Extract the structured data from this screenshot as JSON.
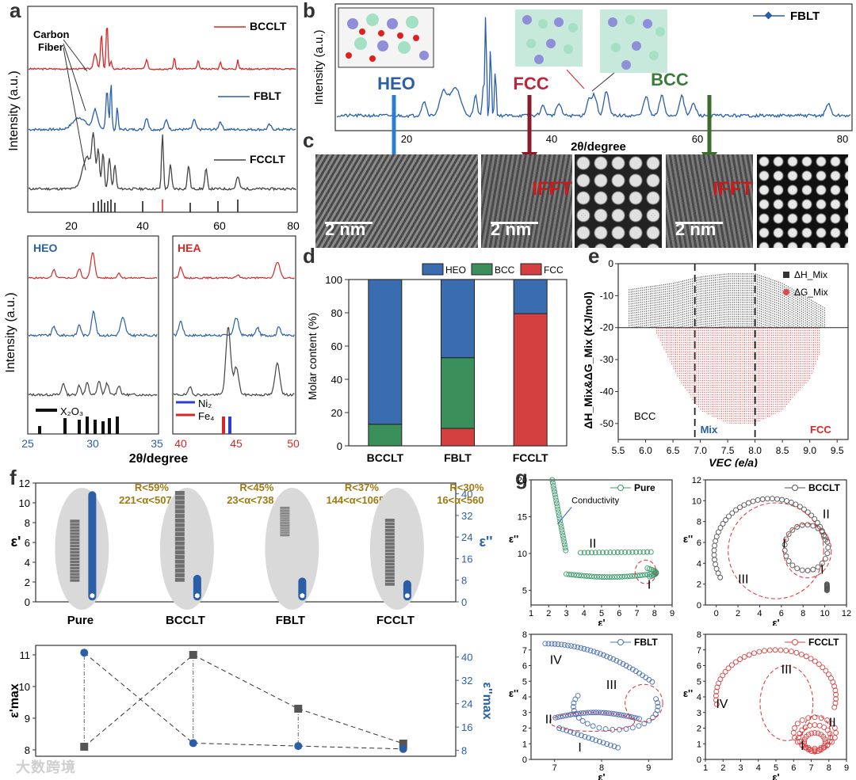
{
  "panel_labels": {
    "a": "a",
    "b": "b",
    "c": "c",
    "d": "d",
    "e": "e",
    "f": "f",
    "g": "g"
  },
  "colors": {
    "red": "#d62728",
    "blue": "#2a5fa8",
    "black": "#333333",
    "green": "#3a7d3a",
    "fcc_bar": "#d44040",
    "bcc_bar": "#3b8f5a",
    "heo_bar": "#3a6cb0"
  },
  "panel_a": {
    "ylabel": "Intensity (a.u.)",
    "series": [
      "BCCLT",
      "FBLT",
      "FCCLT"
    ],
    "annotation": "Carbon\nFiber",
    "annotation_l1": "Carbon",
    "annotation_l2": "Fiber",
    "xticks": [
      "20",
      "40",
      "60",
      "80"
    ],
    "xlim": [
      10,
      80
    ]
  },
  "panel_a2": {
    "ylabel": "Intensity (a.u.)",
    "left_title": "HEO",
    "right_title": "HEA",
    "left_xticks": [
      "25",
      "30",
      "35"
    ],
    "right_xticks": [
      "40",
      "45",
      "50"
    ],
    "xlabel": "2θ/degree",
    "legend_left": "X₂O₃",
    "legend_right_1": "Ni₂",
    "legend_right_2": "Fe₄"
  },
  "panel_b": {
    "ylabel": "Intensity (a.u.)",
    "xlabel": "2θ/degree",
    "legend": "FBLT",
    "labels": [
      "HEO",
      "FCC",
      "BCC"
    ],
    "xticks": [
      "20",
      "40",
      "60",
      "80"
    ]
  },
  "panel_c": {
    "scale_labels": [
      "2 nm",
      "2 nm",
      "2 nm"
    ],
    "ifft_label": "IFFT"
  },
  "chart_data": [
    {
      "type": "bar",
      "id": "d",
      "stacked": true,
      "categories": [
        "BCCLT",
        "FBLT",
        "FCCLT"
      ],
      "series": [
        {
          "name": "FCC",
          "values": [
            0,
            10.5,
            79.5
          ]
        },
        {
          "name": "BCC",
          "values": [
            13,
            42.5,
            0
          ]
        },
        {
          "name": "HEO",
          "values": [
            87,
            47,
            20.5
          ]
        }
      ],
      "ylabel": "Molar content (%)",
      "ylim": [
        0,
        100
      ],
      "yticks": [
        0,
        20,
        40,
        60,
        80,
        100
      ],
      "legend_position": "top-right"
    },
    {
      "type": "scatter",
      "id": "e",
      "xlabel": "VEC (e/a)",
      "ylabel": "ΔH_Mix&ΔG_Mix (KJ/mol)",
      "xlim": [
        5.5,
        9.7
      ],
      "ylim": [
        -55,
        0
      ],
      "xticks": [
        5.5,
        6.0,
        6.5,
        7.0,
        7.5,
        8.0,
        8.5,
        9.0,
        9.5
      ],
      "yticks": [
        -50,
        -40,
        -30,
        -20,
        -10,
        0
      ],
      "series": [
        {
          "name": "ΔH_Mix",
          "envelope_top": [
            [
              5.7,
              -8
            ],
            [
              6.5,
              -6
            ],
            [
              7.0,
              -4
            ],
            [
              7.5,
              -3
            ],
            [
              8.0,
              -3
            ],
            [
              8.5,
              -6
            ],
            [
              9.0,
              -11
            ],
            [
              9.3,
              -14
            ]
          ],
          "envelope_bottom": -20
        },
        {
          "name": "ΔG_Mix",
          "envelope_bottom": [
            [
              6.2,
              -22
            ],
            [
              6.6,
              -36
            ],
            [
              7.0,
              -46
            ],
            [
              7.5,
              -50
            ],
            [
              8.0,
              -50
            ],
            [
              8.5,
              -46
            ],
            [
              9.0,
              -36
            ],
            [
              9.2,
              -28
            ]
          ],
          "envelope_top": -20
        }
      ],
      "reference_lines": {
        "vertical": [
          6.9,
          8.0
        ],
        "horizontal": -20
      },
      "region_labels": [
        "BCC",
        "Mix",
        "FCC"
      ]
    },
    {
      "type": "box",
      "id": "f_top",
      "categories": [
        "Pure",
        "BCCLT",
        "FBLT",
        "FCCLT"
      ],
      "ylabel_left": "ε'",
      "ylabel_right": "ε''",
      "ylim_left": [
        0,
        12
      ],
      "ylim_right": [
        0,
        44
      ],
      "yticks_left": [
        0,
        2,
        4,
        6,
        8,
        10,
        12
      ],
      "yticks_right": [
        0,
        8,
        16,
        24,
        32,
        40
      ],
      "eps_real_ranges": [
        [
          2,
          8.3
        ],
        [
          2,
          11.2
        ],
        [
          6.6,
          9.6
        ],
        [
          1.6,
          8.4
        ]
      ],
      "eps_imag_ranges": [
        [
          0.5,
          41
        ],
        [
          0.5,
          10
        ],
        [
          0.5,
          9
        ],
        [
          0.5,
          8
        ]
      ],
      "annotations": [
        {
          "line1": "R<59%",
          "line2": "221<α<507"
        },
        {
          "line1": "R<45%",
          "line2": "23<α<738"
        },
        {
          "line1": "R<37%",
          "line2": "144<α<1065"
        },
        {
          "line1": "R<30%",
          "line2": "16<α<560"
        }
      ]
    },
    {
      "type": "line",
      "id": "f_bottom",
      "categories": [
        "Pure",
        "BCCLT",
        "FBLT",
        "FCCLT"
      ],
      "ylabel_left": "ε'max",
      "ylabel_right": "ε''max",
      "ylim_left": [
        7.8,
        11.3
      ],
      "ylim_right": [
        6,
        44
      ],
      "yticks_left": [
        8,
        9,
        10,
        11
      ],
      "yticks_right": [
        8,
        16,
        24,
        32,
        40
      ],
      "series": [
        {
          "name": "ε'max",
          "values": [
            8.1,
            11.0,
            9.3,
            8.2
          ]
        },
        {
          "name": "ε''max",
          "values": [
            41.5,
            10.5,
            9.5,
            8.5
          ]
        }
      ]
    },
    {
      "type": "line",
      "id": "g_pure",
      "legend": "Pure",
      "xlabel": "ε'",
      "ylabel": "ε''",
      "xlim": [
        1,
        9
      ],
      "ylim": [
        3,
        20
      ],
      "xticks": [
        1,
        2,
        3,
        4,
        5,
        6,
        7,
        8,
        9
      ],
      "yticks": [
        5,
        10,
        15,
        20
      ],
      "annotation": "Conductivity",
      "regions": [
        "II",
        "I"
      ]
    },
    {
      "type": "line",
      "id": "g_bcclt",
      "legend": "BCCLT",
      "xlabel": "ε'",
      "ylabel": "ε''",
      "xlim": [
        -1,
        12
      ],
      "ylim": [
        0,
        12
      ],
      "xticks": [
        0,
        2,
        4,
        6,
        8,
        10,
        12
      ],
      "yticks": [
        0,
        2,
        4,
        6,
        8,
        10,
        12
      ],
      "regions": [
        "II",
        "I",
        "III",
        "I"
      ]
    },
    {
      "type": "line",
      "id": "g_fblt",
      "legend": "FBLT",
      "xlabel": "ε'",
      "ylabel": "ε''",
      "xlim": [
        6.5,
        9.5
      ],
      "ylim": [
        0,
        8
      ],
      "xticks": [
        7,
        8,
        9
      ],
      "yticks": [
        0,
        1,
        2,
        3,
        4,
        5,
        6,
        7,
        8
      ],
      "regions": [
        "IV",
        "III",
        "II",
        "I"
      ]
    },
    {
      "type": "line",
      "id": "g_fcclt",
      "legend": "FCCLT",
      "xlabel": "ε'",
      "ylabel": "ε''",
      "xlim": [
        1,
        9
      ],
      "ylim": [
        0,
        8
      ],
      "xticks": [
        1,
        2,
        3,
        4,
        5,
        6,
        7,
        8,
        9
      ],
      "yticks": [
        0,
        1,
        2,
        3,
        4,
        5,
        6,
        7,
        8
      ],
      "regions": [
        "IV",
        "III",
        "II",
        "I"
      ]
    }
  ],
  "watermark": "大数跨境"
}
